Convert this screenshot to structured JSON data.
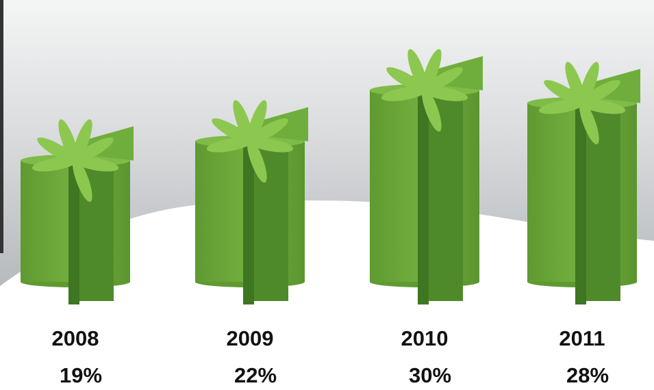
{
  "chart_data": {
    "type": "bar",
    "categories": [
      "2008",
      "2009",
      "2010",
      "2011"
    ],
    "values": [
      19,
      22,
      30,
      28
    ],
    "value_labels": [
      "19%",
      "22%",
      "30%",
      "28%"
    ],
    "color": "#6aa63a"
  }
}
